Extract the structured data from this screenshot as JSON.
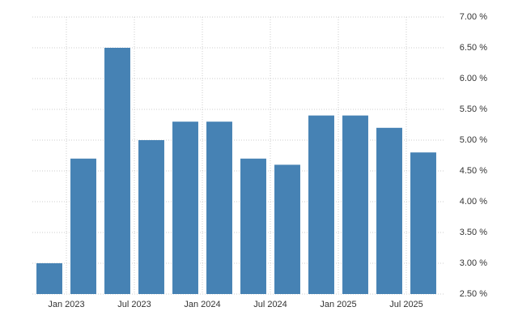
{
  "chart_data": {
    "type": "bar",
    "categories": [
      null,
      null,
      null,
      null,
      null,
      null,
      null,
      null,
      null,
      null,
      null,
      null
    ],
    "values": [
      3.0,
      4.7,
      6.5,
      5.0,
      5.3,
      5.3,
      4.7,
      4.6,
      5.4,
      5.4,
      5.2,
      4.8
    ],
    "color": "#4682b4",
    "ylim": [
      2.5,
      7.0
    ],
    "yticks": [
      {
        "value": 2.5,
        "label": "2.50 %"
      },
      {
        "value": 3.0,
        "label": "3.00 %"
      },
      {
        "value": 3.5,
        "label": "3.50 %"
      },
      {
        "value": 4.0,
        "label": "4.00 %"
      },
      {
        "value": 4.5,
        "label": "4.50 %"
      },
      {
        "value": 5.0,
        "label": "5.00 %"
      },
      {
        "value": 5.5,
        "label": "5.50 %"
      },
      {
        "value": 6.0,
        "label": "6.00 %"
      },
      {
        "value": 6.5,
        "label": "6.50 %"
      },
      {
        "value": 7.0,
        "label": "7.00 %"
      }
    ],
    "xticks": [
      {
        "value": 0.5,
        "label": "Jan 2023"
      },
      {
        "value": 2.5,
        "label": "Jul 2023"
      },
      {
        "value": 4.5,
        "label": "Jan 2024"
      },
      {
        "value": 6.5,
        "label": "Jul 2024"
      },
      {
        "value": 8.5,
        "label": "Jan 2025"
      },
      {
        "value": 10.5,
        "label": "Jul 2025"
      }
    ],
    "grid": true
  }
}
